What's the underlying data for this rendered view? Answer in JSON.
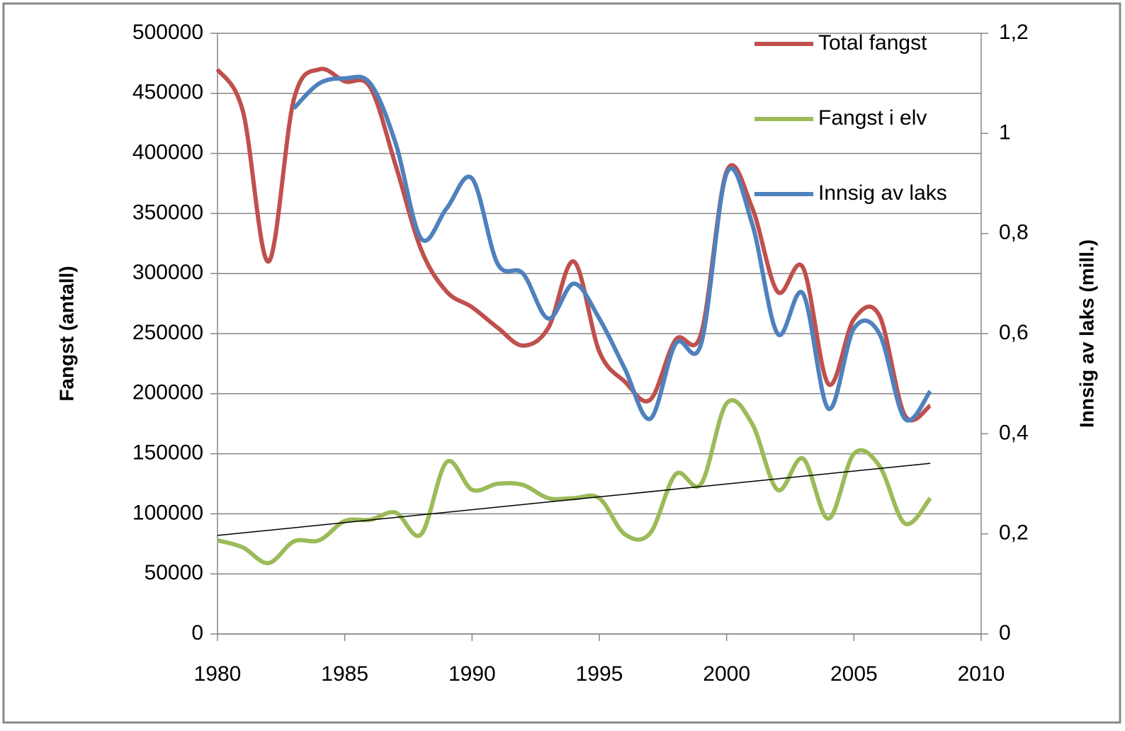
{
  "chart_data": {
    "type": "line",
    "y_label": "Fangst (antall)",
    "y2_label": "Innsig av laks (mill.)",
    "x": [
      1980,
      1981,
      1982,
      1983,
      1984,
      1985,
      1986,
      1987,
      1988,
      1989,
      1990,
      1991,
      1992,
      1993,
      1994,
      1995,
      1996,
      1997,
      1998,
      1999,
      2000,
      2001,
      2002,
      2003,
      2004,
      2005,
      2006,
      2007,
      2008
    ],
    "series": [
      {
        "name": "Total fangst",
        "color": "#c0504d",
        "values": [
          470000,
          435000,
          310000,
          445000,
          470000,
          460000,
          455000,
          390000,
          320000,
          285000,
          272000,
          255000,
          240000,
          255000,
          310000,
          235000,
          210000,
          195000,
          245000,
          250000,
          385000,
          355000,
          285000,
          305000,
          208000,
          262000,
          265000,
          182000,
          190000
        ]
      },
      {
        "name": "Fangst i elv",
        "color": "#9bbb59",
        "values": [
          78000,
          72000,
          59000,
          77000,
          78000,
          94000,
          95000,
          101000,
          83000,
          143000,
          120000,
          125000,
          124000,
          113000,
          113000,
          113000,
          83000,
          84000,
          133000,
          125000,
          192000,
          175000,
          120000,
          146000,
          96000,
          150000,
          140000,
          92000,
          113000
        ]
      },
      {
        "name": "Innsig av laks",
        "color": "#4f81bd",
        "axis": "y2",
        "values": [
          null,
          null,
          null,
          1.05,
          1.1,
          1.11,
          1.1,
          0.98,
          0.79,
          0.85,
          0.91,
          0.74,
          0.72,
          0.63,
          0.7,
          0.63,
          0.53,
          0.43,
          0.58,
          0.58,
          0.92,
          0.82,
          0.6,
          0.68,
          0.45,
          0.61,
          0.6,
          0.43,
          0.485
        ]
      }
    ],
    "trend": {
      "x": [
        1980,
        2008
      ],
      "values": [
        82000,
        142000
      ],
      "color": "#000000"
    },
    "xlim": [
      1980,
      2010
    ],
    "xticks": [
      1980,
      1985,
      1990,
      1995,
      2000,
      2005,
      2010
    ],
    "ylim": [
      0,
      500000
    ],
    "yticks": [
      0,
      50000,
      100000,
      150000,
      200000,
      250000,
      300000,
      350000,
      400000,
      450000,
      500000
    ],
    "y2lim": [
      0,
      1.2
    ],
    "y2ticks": [
      0,
      {
        "value": 0.2,
        "label": "0,2"
      },
      {
        "value": 0.4,
        "label": "0,4"
      },
      {
        "value": 0.6,
        "label": "0,6"
      },
      {
        "value": 0.8,
        "label": "0,8"
      },
      1,
      {
        "value": 1.2,
        "label": "1,2"
      }
    ],
    "grid": true,
    "legend": "top-right"
  }
}
